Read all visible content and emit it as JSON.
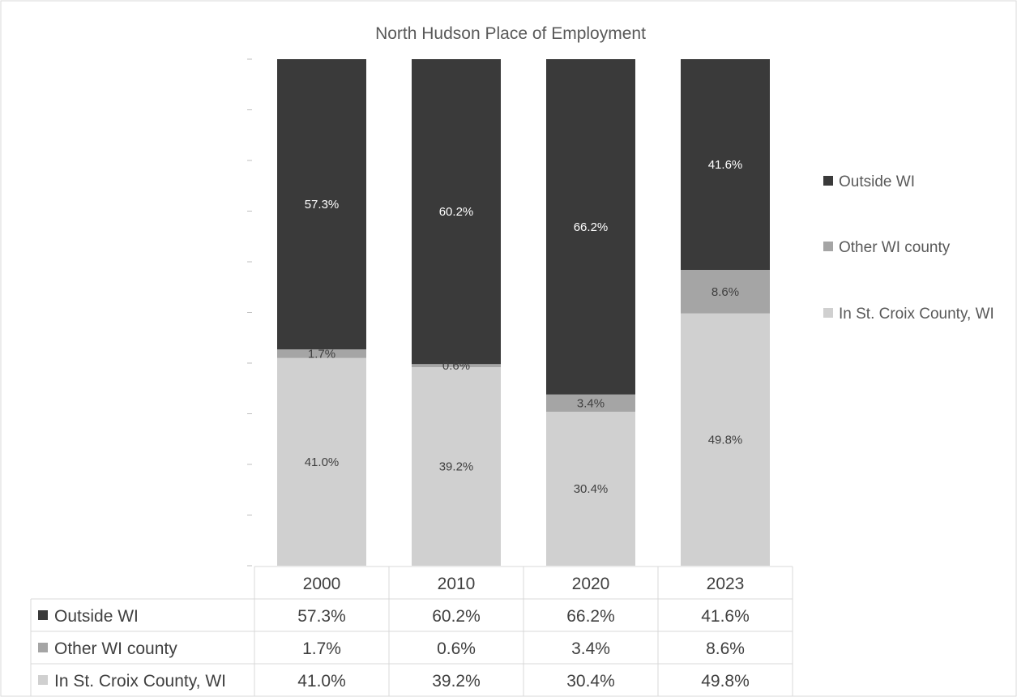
{
  "chart_data": {
    "type": "bar",
    "stacked": true,
    "title": "North Hudson Place of Employment",
    "categories": [
      "2000",
      "2010",
      "2020",
      "2023"
    ],
    "series": [
      {
        "name": "In St. Croix County, WI",
        "values": [
          41.0,
          39.2,
          30.4,
          49.8
        ],
        "labels": [
          "41.0%",
          "39.2%",
          "30.4%",
          "49.8%"
        ],
        "color": "#d0d0d0",
        "label_color": "#404040"
      },
      {
        "name": "Other WI county",
        "values": [
          1.7,
          0.6,
          3.4,
          8.6
        ],
        "labels": [
          "1.7%",
          "0.6%",
          "3.4%",
          "8.6%"
        ],
        "color": "#a5a5a5",
        "label_color": "#404040"
      },
      {
        "name": "Outside WI",
        "values": [
          57.3,
          60.2,
          66.2,
          41.6
        ],
        "labels": [
          "57.3%",
          "60.2%",
          "66.2%",
          "41.6%"
        ],
        "color": "#3a3a3a",
        "label_color": "#ffffff"
      }
    ],
    "table_rows": [
      {
        "series": "Outside WI",
        "cells": [
          "57.3%",
          "60.2%",
          "66.2%",
          "41.6%"
        ]
      },
      {
        "series": "Other WI county",
        "cells": [
          "1.7%",
          "0.6%",
          "3.4%",
          "8.6%"
        ]
      },
      {
        "series": "In St. Croix County, WI",
        "cells": [
          "41.0%",
          "39.2%",
          "30.4%",
          "49.8%"
        ]
      }
    ],
    "legend_order": [
      "Outside WI",
      "Other WI county",
      "In St. Croix County, WI"
    ],
    "legend_position": "right",
    "ylim": [
      0,
      100
    ],
    "grid": false,
    "data_table": true
  }
}
